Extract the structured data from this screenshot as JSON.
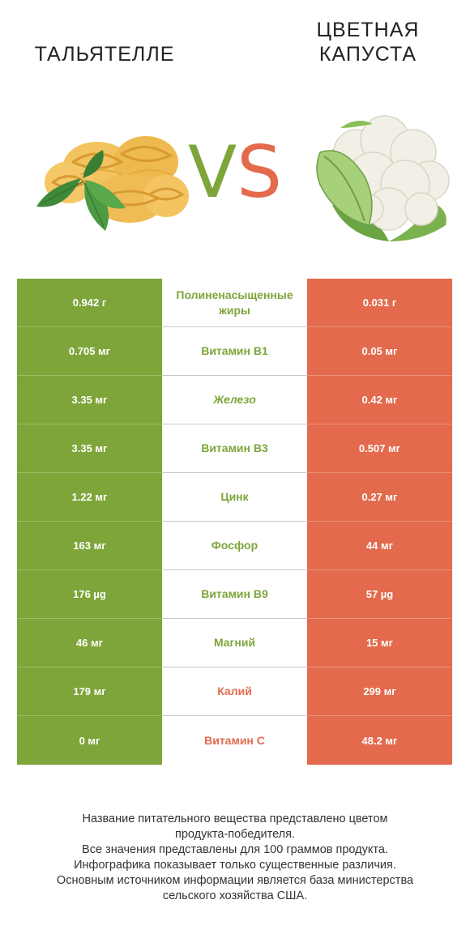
{
  "header": {
    "left_title": "ТАЛЬЯТЕЛЛЕ",
    "right_title_line1": "ЦВЕТНАЯ",
    "right_title_line2": "КАПУСТА",
    "vs_v": "V",
    "vs_s": "S"
  },
  "colors": {
    "left_accent": "#7ea53a",
    "right_accent": "#e36a4c"
  },
  "images": {
    "left": "tagliatelle-pasta-with-basil",
    "right": "cauliflower"
  },
  "rows": [
    {
      "left": "0.942 г",
      "nutrient": "Полиненасыщенные жиры",
      "right": "0.031 г",
      "winner": "left"
    },
    {
      "left": "0.705 мг",
      "nutrient": "Витамин B1",
      "right": "0.05 мг",
      "winner": "left"
    },
    {
      "left": "3.35 мг",
      "nutrient": "Железо",
      "right": "0.42 мг",
      "winner": "left"
    },
    {
      "left": "3.35 мг",
      "nutrient": "Витамин B3",
      "right": "0.507 мг",
      "winner": "left"
    },
    {
      "left": "1.22 мг",
      "nutrient": "Цинк",
      "right": "0.27 мг",
      "winner": "left"
    },
    {
      "left": "163 мг",
      "nutrient": "Фосфор",
      "right": "44 мг",
      "winner": "left"
    },
    {
      "left": "176 µg",
      "nutrient": "Витамин B9",
      "right": "57 µg",
      "winner": "left"
    },
    {
      "left": "46 мг",
      "nutrient": "Магний",
      "right": "15 мг",
      "winner": "left"
    },
    {
      "left": "179 мг",
      "nutrient": "Калий",
      "right": "299 мг",
      "winner": "right"
    },
    {
      "left": "0 мг",
      "nutrient": "Витамин C",
      "right": "48.2 мг",
      "winner": "right"
    }
  ],
  "footer": {
    "line1": "Название питательного вещества представлено цветом",
    "line2": "продукта-победителя.",
    "line3": "Все значения представлены для 100 граммов продукта.",
    "line4": "Инфографика показывает только существенные различия.",
    "line5": "Основным источником информации является база министерства",
    "line6": "сельского хозяйства США."
  }
}
